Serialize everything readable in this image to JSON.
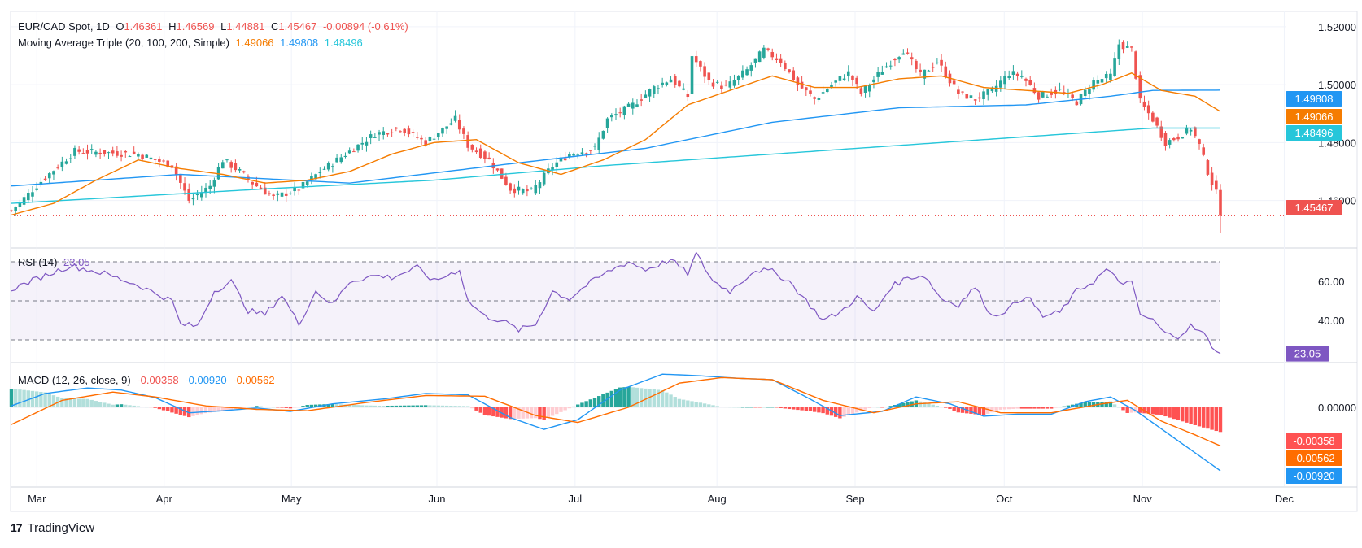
{
  "header": {
    "symbol": "EUR/CAD Spot, 1D",
    "open_label": "O",
    "open": "1.46361",
    "high_label": "H",
    "high": "1.46569",
    "low_label": "L",
    "low": "1.44881",
    "close_label": "C",
    "close": "1.45467",
    "change": "-0.00894 (-0.61%)"
  },
  "ma_legend": {
    "label": "Moving Average Triple (20, 100, 200, Simple)",
    "ma20": "1.49066",
    "ma100": "1.49808",
    "ma200": "1.48496"
  },
  "rsi_legend": {
    "label": "RSI (14)",
    "value": "23.05"
  },
  "macd_legend": {
    "label": "MACD (12, 26, close, 9)",
    "hist": "-0.00358",
    "macd": "-0.00920",
    "signal": "-0.00562"
  },
  "brand": {
    "logo": "17",
    "name": "TradingView"
  },
  "colors": {
    "up": "#26a69a",
    "down": "#ef5350",
    "ma20": "#f57c00",
    "ma100": "#2196f3",
    "ma200": "#26c6da",
    "rsi": "#7e57c2",
    "macd": "#2196f3",
    "signal": "#ff6d00",
    "hist_up_strong": "#26a69a",
    "hist_up_weak": "#b2dfdb",
    "hist_down_strong": "#ff5252",
    "hist_down_weak": "#ffcdd2"
  },
  "chart_data": {
    "type": "candlestick",
    "title": "EUR/CAD Spot, 1D",
    "price_axis": {
      "ticks": [
        1.46,
        1.48,
        1.5,
        1.52
      ],
      "tick_labels": [
        "1.46000",
        "1.48000",
        "1.50000",
        "1.52000"
      ],
      "ylim": [
        1.445,
        1.525
      ]
    },
    "x_tick_labels": [
      "Mar",
      "Apr",
      "May",
      "Jun",
      "Jul",
      "Aug",
      "Sep",
      "Oct",
      "Nov",
      "Dec"
    ],
    "last_price": 1.45467,
    "price_badges": [
      {
        "value": "1.49808",
        "color": "#2196f3"
      },
      {
        "value": "1.49066",
        "color": "#f57c00"
      },
      {
        "value": "1.48496",
        "color": "#26c6da"
      },
      {
        "value": "1.45467",
        "color": "#ef5350"
      }
    ],
    "close_keypoints": [
      [
        0,
        1.4565
      ],
      [
        8,
        1.468
      ],
      [
        15,
        1.477
      ],
      [
        30,
        1.476
      ],
      [
        38,
        1.472
      ],
      [
        42,
        1.46
      ],
      [
        47,
        1.465
      ],
      [
        50,
        1.474
      ],
      [
        54,
        1.47
      ],
      [
        57,
        1.466
      ],
      [
        62,
        1.461
      ],
      [
        68,
        1.464
      ],
      [
        73,
        1.47
      ],
      [
        80,
        1.477
      ],
      [
        86,
        1.483
      ],
      [
        92,
        1.485
      ],
      [
        98,
        1.48
      ],
      [
        105,
        1.488
      ],
      [
        108,
        1.479
      ],
      [
        113,
        1.474
      ],
      [
        118,
        1.464
      ],
      [
        123,
        1.463
      ],
      [
        128,
        1.472
      ],
      [
        132,
        1.476
      ],
      [
        138,
        1.478
      ],
      [
        141,
        1.488
      ],
      [
        147,
        1.493
      ],
      [
        152,
        1.499
      ],
      [
        156,
        1.502
      ],
      [
        160,
        1.496
      ],
      [
        161,
        1.51
      ],
      [
        165,
        1.501
      ],
      [
        169,
        1.499
      ],
      [
        174,
        1.505
      ],
      [
        178,
        1.512
      ],
      [
        182,
        1.508
      ],
      [
        186,
        1.5
      ],
      [
        190,
        1.495
      ],
      [
        195,
        1.501
      ],
      [
        198,
        1.504
      ],
      [
        201,
        1.497
      ],
      [
        206,
        1.505
      ],
      [
        211,
        1.512
      ],
      [
        215,
        1.503
      ],
      [
        219,
        1.508
      ],
      [
        224,
        1.497
      ],
      [
        228,
        1.495
      ],
      [
        232,
        1.498
      ],
      [
        236,
        1.504
      ],
      [
        239,
        1.503
      ],
      [
        243,
        1.496
      ],
      [
        248,
        1.498
      ],
      [
        252,
        1.494
      ],
      [
        256,
        1.501
      ],
      [
        260,
        1.503
      ],
      [
        262,
        1.514
      ],
      [
        265,
        1.512
      ],
      [
        267,
        1.494
      ],
      [
        270,
        1.488
      ],
      [
        273,
        1.48
      ],
      [
        276,
        1.482
      ],
      [
        279,
        1.485
      ],
      [
        281,
        1.479
      ],
      [
        283,
        1.47
      ],
      [
        285,
        1.4625
      ],
      [
        286,
        1.4547
      ]
    ],
    "ma_keypoints": {
      "ma20": [
        [
          0,
          1.455
        ],
        [
          10,
          1.459
        ],
        [
          20,
          1.467
        ],
        [
          30,
          1.474
        ],
        [
          40,
          1.471
        ],
        [
          50,
          1.469
        ],
        [
          60,
          1.466
        ],
        [
          70,
          1.467
        ],
        [
          80,
          1.47
        ],
        [
          90,
          1.476
        ],
        [
          100,
          1.48
        ],
        [
          110,
          1.481
        ],
        [
          120,
          1.473
        ],
        [
          130,
          1.469
        ],
        [
          140,
          1.474
        ],
        [
          150,
          1.481
        ],
        [
          160,
          1.493
        ],
        [
          170,
          1.498
        ],
        [
          180,
          1.503
        ],
        [
          190,
          1.499
        ],
        [
          200,
          1.499
        ],
        [
          210,
          1.502
        ],
        [
          220,
          1.503
        ],
        [
          230,
          1.499
        ],
        [
          240,
          1.498
        ],
        [
          250,
          1.497
        ],
        [
          258,
          1.5
        ],
        [
          265,
          1.504
        ],
        [
          272,
          1.498
        ],
        [
          280,
          1.496
        ],
        [
          286,
          1.4907
        ]
      ],
      "ma100": [
        [
          0,
          1.465
        ],
        [
          40,
          1.469
        ],
        [
          80,
          1.466
        ],
        [
          120,
          1.473
        ],
        [
          150,
          1.478
        ],
        [
          180,
          1.487
        ],
        [
          210,
          1.492
        ],
        [
          240,
          1.493
        ],
        [
          260,
          1.496
        ],
        [
          270,
          1.498
        ],
        [
          286,
          1.4981
        ]
      ],
      "ma200": [
        [
          0,
          1.459
        ],
        [
          60,
          1.464
        ],
        [
          100,
          1.467
        ],
        [
          140,
          1.472
        ],
        [
          180,
          1.476
        ],
        [
          220,
          1.48
        ],
        [
          250,
          1.483
        ],
        [
          270,
          1.485
        ],
        [
          286,
          1.485
        ]
      ]
    },
    "rsi": {
      "ylim": [
        20,
        75
      ],
      "levels": [
        70,
        50,
        30
      ],
      "tick_labels": [
        "40.00",
        "60.00"
      ],
      "last": 23.05,
      "keypoints": [
        [
          0,
          56
        ],
        [
          8,
          63
        ],
        [
          14,
          68
        ],
        [
          22,
          64
        ],
        [
          30,
          58
        ],
        [
          38,
          50
        ],
        [
          40,
          38
        ],
        [
          44,
          37
        ],
        [
          48,
          55
        ],
        [
          52,
          60
        ],
        [
          56,
          45
        ],
        [
          60,
          43
        ],
        [
          64,
          53
        ],
        [
          68,
          38
        ],
        [
          72,
          55
        ],
        [
          76,
          48
        ],
        [
          80,
          60
        ],
        [
          86,
          63
        ],
        [
          90,
          62
        ],
        [
          96,
          67
        ],
        [
          100,
          60
        ],
        [
          106,
          66
        ],
        [
          108,
          50
        ],
        [
          112,
          42
        ],
        [
          116,
          40
        ],
        [
          120,
          35
        ],
        [
          124,
          38
        ],
        [
          128,
          55
        ],
        [
          132,
          51
        ],
        [
          136,
          58
        ],
        [
          142,
          66
        ],
        [
          146,
          70
        ],
        [
          150,
          66
        ],
        [
          156,
          71
        ],
        [
          160,
          64
        ],
        [
          162,
          74
        ],
        [
          166,
          60
        ],
        [
          170,
          55
        ],
        [
          176,
          66
        ],
        [
          180,
          65
        ],
        [
          184,
          60
        ],
        [
          188,
          50
        ],
        [
          192,
          40
        ],
        [
          196,
          44
        ],
        [
          200,
          52
        ],
        [
          204,
          44
        ],
        [
          208,
          57
        ],
        [
          212,
          62
        ],
        [
          216,
          63
        ],
        [
          220,
          51
        ],
        [
          224,
          48
        ],
        [
          228,
          57
        ],
        [
          232,
          42
        ],
        [
          236,
          46
        ],
        [
          240,
          53
        ],
        [
          244,
          42
        ],
        [
          248,
          44
        ],
        [
          252,
          55
        ],
        [
          256,
          60
        ],
        [
          259,
          66
        ],
        [
          262,
          60
        ],
        [
          265,
          59
        ],
        [
          267,
          43
        ],
        [
          270,
          40
        ],
        [
          273,
          33
        ],
        [
          276,
          32
        ],
        [
          279,
          37
        ],
        [
          282,
          33
        ],
        [
          284,
          27
        ],
        [
          286,
          23.05
        ]
      ]
    },
    "macd": {
      "ylim": [
        -0.0105,
        0.006
      ],
      "tick_labels": [
        "0.00000"
      ],
      "last": {
        "histogram": -0.00358,
        "macd": -0.0092,
        "signal": -0.00562
      },
      "macd_keypoints": [
        [
          0,
          0.0002
        ],
        [
          8,
          0.002
        ],
        [
          18,
          0.0028
        ],
        [
          26,
          0.0025
        ],
        [
          34,
          0.0014
        ],
        [
          42,
          -0.0008
        ],
        [
          50,
          -0.0005
        ],
        [
          58,
          -0.0001
        ],
        [
          66,
          -0.0006
        ],
        [
          76,
          0.0005
        ],
        [
          88,
          0.0012
        ],
        [
          98,
          0.002
        ],
        [
          108,
          0.0018
        ],
        [
          118,
          -0.0015
        ],
        [
          126,
          -0.0032
        ],
        [
          134,
          -0.0018
        ],
        [
          144,
          0.0025
        ],
        [
          154,
          0.0048
        ],
        [
          162,
          0.0046
        ],
        [
          172,
          0.0042
        ],
        [
          180,
          0.004
        ],
        [
          188,
          0.0015
        ],
        [
          196,
          -0.0012
        ],
        [
          206,
          -0.0006
        ],
        [
          214,
          0.0015
        ],
        [
          222,
          0.0005
        ],
        [
          230,
          -0.0013
        ],
        [
          238,
          -0.001
        ],
        [
          246,
          -0.001
        ],
        [
          254,
          0.0008
        ],
        [
          260,
          0.0015
        ],
        [
          266,
          -0.0005
        ],
        [
          274,
          -0.004
        ],
        [
          286,
          -0.0092
        ]
      ],
      "signal_keypoints": [
        [
          0,
          -0.0025
        ],
        [
          12,
          0.001
        ],
        [
          24,
          0.0022
        ],
        [
          34,
          0.0015
        ],
        [
          46,
          0.0002
        ],
        [
          58,
          -0.0003
        ],
        [
          70,
          -0.0005
        ],
        [
          84,
          0.0007
        ],
        [
          98,
          0.0017
        ],
        [
          112,
          0.0016
        ],
        [
          124,
          -0.0012
        ],
        [
          134,
          -0.0022
        ],
        [
          146,
          0.0
        ],
        [
          158,
          0.0035
        ],
        [
          168,
          0.0043
        ],
        [
          180,
          0.004
        ],
        [
          192,
          0.001
        ],
        [
          204,
          -0.0008
        ],
        [
          214,
          0.0005
        ],
        [
          224,
          0.0008
        ],
        [
          234,
          -0.0008
        ],
        [
          246,
          -0.0008
        ],
        [
          258,
          0.0005
        ],
        [
          264,
          0.001
        ],
        [
          272,
          -0.002
        ],
        [
          280,
          -0.004
        ],
        [
          286,
          -0.0056
        ]
      ]
    }
  }
}
